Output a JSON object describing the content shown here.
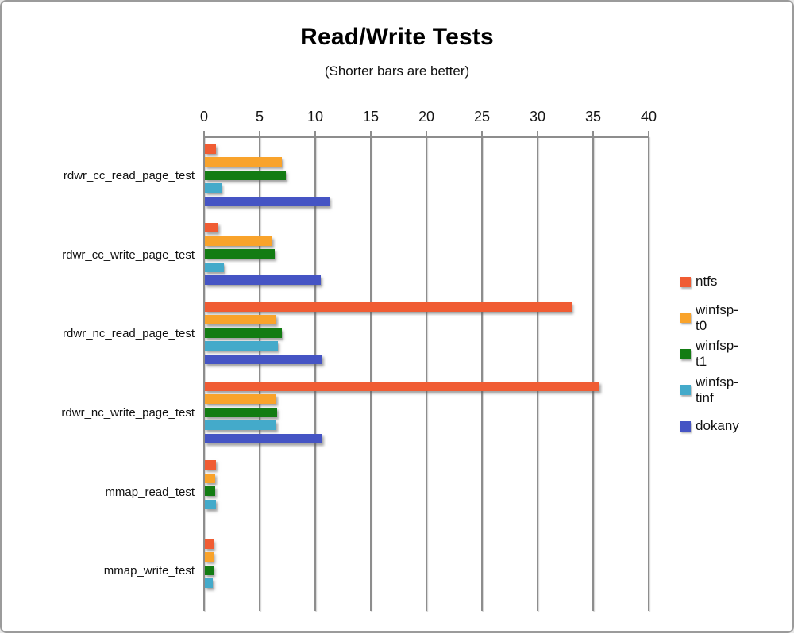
{
  "window": {
    "background": "#ffffff",
    "frame_border_color": "#9b9b9b"
  },
  "chart_data": {
    "type": "bar",
    "orientation": "horizontal",
    "title": "Read/Write Tests",
    "subtitle": "(Shorter bars are better)",
    "categories": [
      "rdwr_cc_read_page_test",
      "rdwr_cc_write_page_test",
      "rdwr_nc_read_page_test",
      "rdwr_nc_write_page_test",
      "mmap_read_test",
      "mmap_write_test"
    ],
    "series": [
      {
        "name": "ntfs",
        "color": "#F05C33",
        "values": [
          1.0,
          1.2,
          33.0,
          35.5,
          1.0,
          0.75
        ]
      },
      {
        "name": "winfsp-t0",
        "color": "#F9A32B",
        "values": [
          6.9,
          6.1,
          6.4,
          6.4,
          0.95,
          0.75
        ]
      },
      {
        "name": "winfsp-t1",
        "color": "#137C13",
        "values": [
          7.3,
          6.3,
          6.9,
          6.5,
          0.9,
          0.8
        ]
      },
      {
        "name": "winfsp-tinf",
        "color": "#44AACA",
        "values": [
          1.5,
          1.7,
          6.6,
          6.4,
          1.0,
          0.7
        ]
      },
      {
        "name": "dokany",
        "color": "#4554C4",
        "values": [
          11.2,
          10.4,
          10.6,
          10.6,
          0,
          0
        ]
      }
    ],
    "x_axis": {
      "min": 0,
      "max": 40,
      "tick_interval": 5,
      "tick_labels": [
        "0",
        "5",
        "10",
        "15",
        "20",
        "25",
        "30",
        "35",
        "40"
      ]
    },
    "legend": {
      "position": "right",
      "entries": [
        "ntfs",
        "winfsp-t0",
        "winfsp-t1",
        "winfsp-tinf",
        "dokany"
      ]
    },
    "grid": true,
    "grid_color": "#8d8d8d"
  }
}
